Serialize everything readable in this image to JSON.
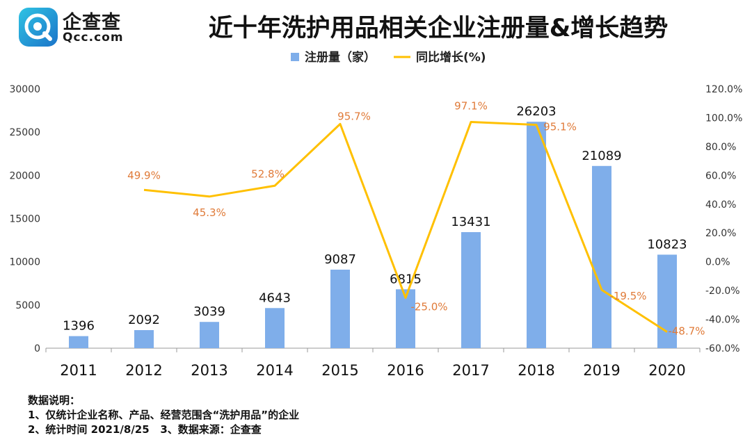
{
  "brand": {
    "cn": "企查查",
    "en": "Qcc.com"
  },
  "title": "近十年洗护用品相关企业注册量&增长趋势",
  "colors": {
    "bar": "#7FAEEA",
    "line": "#FFC000",
    "line_label": "#E07B39",
    "brand_teal": "#2AA8D8",
    "brand_blue": "#1B74C9"
  },
  "chart_data": {
    "type": "bar+line",
    "categories": [
      "2011",
      "2012",
      "2013",
      "2014",
      "2015",
      "2016",
      "2017",
      "2018",
      "2019",
      "2020"
    ],
    "series": [
      {
        "name": "注册量（家）",
        "type": "bar",
        "axis": "left",
        "values": [
          1396,
          2092,
          3039,
          4643,
          9087,
          6815,
          13431,
          26203,
          21089,
          10823
        ],
        "labels": [
          "1396",
          "2092",
          "3039",
          "4643",
          "9087",
          "6815",
          "13431",
          "26203",
          "21089",
          "10823"
        ]
      },
      {
        "name": "同比增长(%)",
        "type": "line",
        "axis": "right",
        "values": [
          null,
          49.9,
          45.3,
          52.8,
          95.7,
          -25.0,
          97.1,
          95.1,
          -19.5,
          -48.7
        ],
        "labels": [
          "",
          "49.9%",
          "45.3%",
          "52.8%",
          "95.7%",
          "-25.0%",
          "97.1%",
          "95.1%",
          "-19.5%",
          "-48.7%"
        ]
      }
    ],
    "y_left": {
      "min": 0,
      "max": 30000,
      "step": 5000,
      "ticks": [
        "0",
        "5000",
        "10000",
        "15000",
        "20000",
        "25000",
        "30000"
      ]
    },
    "y_right": {
      "min": -60,
      "max": 120,
      "step": 20,
      "ticks": [
        "-60.0%",
        "-40.0%",
        "-20.0%",
        "0.0%",
        "20.0%",
        "40.0%",
        "60.0%",
        "80.0%",
        "100.0%",
        "120.0%"
      ]
    },
    "legend_position": "top-center",
    "grid": false
  },
  "notes": [
    "数据说明：",
    "1、仅统计企业名称、产品、经营范围含“洗护用品”的企业",
    "2、统计时间 2021/8/25   3、数据来源：企查查"
  ]
}
